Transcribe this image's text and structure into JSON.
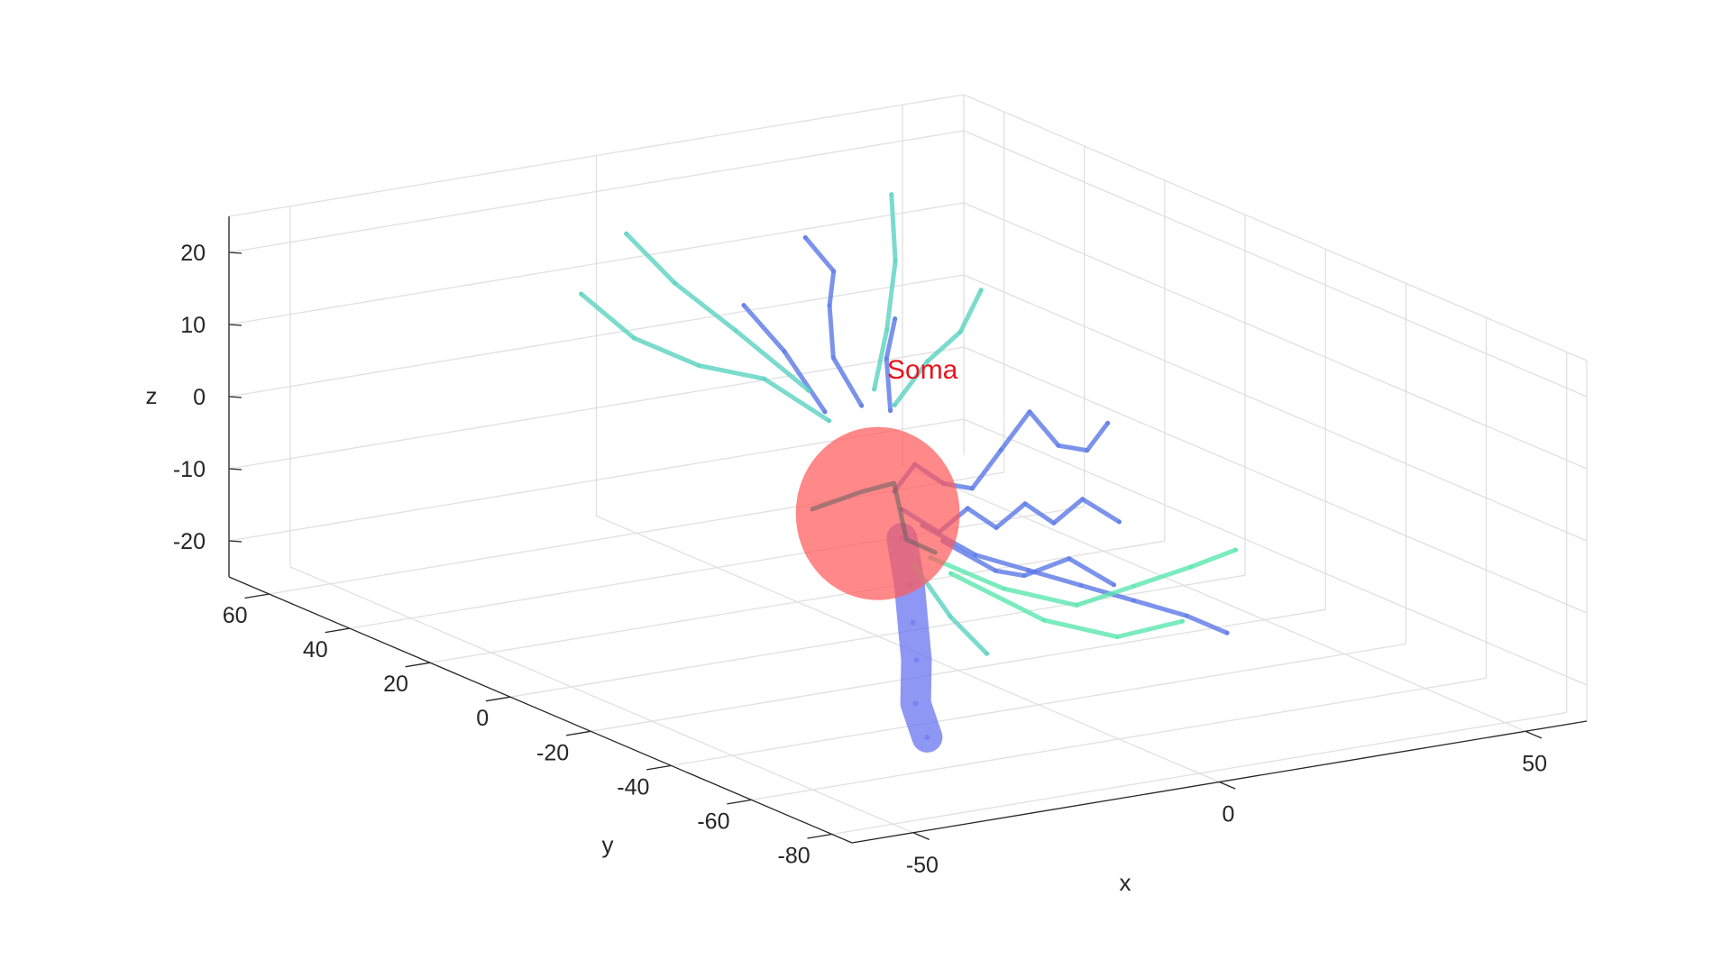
{
  "chart_data": {
    "type": "3d-line",
    "title": "",
    "xlabel": "x",
    "ylabel": "y",
    "zlabel": "z",
    "x_ticks": [
      -50,
      0,
      50
    ],
    "y_ticks": [
      60,
      40,
      20,
      0,
      -20,
      -40,
      -60,
      -80
    ],
    "z_ticks": [
      20,
      10,
      0,
      -10,
      -20
    ],
    "xlim": [
      -60,
      60
    ],
    "ylim": [
      -85,
      70
    ],
    "zlim": [
      -25,
      25
    ],
    "grid": true,
    "colors": {
      "soma": "#ff5a5a",
      "axon": "#6a74f0",
      "dendrite_blue": "#5a78e6",
      "dendrite_cyan": "#5ad2c0",
      "dendrite_green": "#5ae6b0",
      "annotation": "#e8141e"
    },
    "annotation": {
      "text": "Soma",
      "color": "#e8141e"
    },
    "soma": {
      "center": [
        0,
        0,
        -8
      ],
      "radius": 12
    },
    "series": [
      {
        "kind": "axon",
        "points": [
          [
            0,
            -6,
            -10
          ],
          [
            -4,
            -14,
            -14
          ],
          [
            -10,
            -24,
            -16
          ],
          [
            -16,
            -34,
            -18
          ],
          [
            -24,
            -46,
            -20
          ],
          [
            -30,
            -58,
            -21
          ]
        ]
      },
      {
        "kind": "dendrite_blue",
        "points": [
          [
            4,
            2,
            -6
          ],
          [
            10,
            6,
            -4
          ],
          [
            16,
            8,
            -8
          ],
          [
            22,
            10,
            -10
          ],
          [
            28,
            12,
            -6
          ],
          [
            34,
            14,
            -2
          ],
          [
            40,
            16,
            -8
          ],
          [
            46,
            18,
            -10
          ],
          [
            52,
            22,
            -8
          ]
        ]
      },
      {
        "kind": "dendrite_blue",
        "points": [
          [
            6,
            -2,
            -10
          ],
          [
            12,
            -6,
            -14
          ],
          [
            18,
            -10,
            -16
          ],
          [
            24,
            -14,
            -18
          ],
          [
            30,
            -18,
            -20
          ],
          [
            36,
            -22,
            -22
          ],
          [
            40,
            -26,
            -24
          ]
        ]
      },
      {
        "kind": "dendrite_blue",
        "points": [
          [
            4,
            0,
            -8
          ],
          [
            10,
            0,
            -12
          ],
          [
            16,
            2,
            -10
          ],
          [
            22,
            4,
            -14
          ],
          [
            28,
            6,
            -12
          ],
          [
            34,
            8,
            -16
          ],
          [
            40,
            10,
            -14
          ],
          [
            46,
            10,
            -18
          ]
        ]
      },
      {
        "kind": "dendrite_blue",
        "points": [
          [
            0,
            4,
            6
          ],
          [
            -2,
            8,
            12
          ],
          [
            0,
            12,
            18
          ],
          [
            2,
            14,
            22
          ],
          [
            0,
            18,
            26
          ]
        ]
      },
      {
        "kind": "dendrite_blue",
        "points": [
          [
            -6,
            4,
            6
          ],
          [
            -10,
            8,
            14
          ],
          [
            -14,
            12,
            20
          ]
        ]
      },
      {
        "kind": "dendrite_blue",
        "points": [
          [
            6,
            6,
            4
          ],
          [
            8,
            10,
            10
          ],
          [
            12,
            14,
            14
          ]
        ]
      },
      {
        "kind": "dendrite_blue",
        "points": [
          [
            8,
            -4,
            -12
          ],
          [
            14,
            -8,
            -16
          ],
          [
            20,
            -6,
            -18
          ],
          [
            26,
            -8,
            -16
          ],
          [
            32,
            -10,
            -20
          ]
        ]
      },
      {
        "kind": "dendrite_cyan",
        "points": [
          [
            -4,
            6,
            4
          ],
          [
            -12,
            10,
            10
          ],
          [
            -20,
            14,
            12
          ],
          [
            -28,
            18,
            16
          ],
          [
            -34,
            22,
            22
          ]
        ]
      },
      {
        "kind": "dendrite_cyan",
        "points": [
          [
            -6,
            8,
            8
          ],
          [
            -14,
            14,
            16
          ],
          [
            -20,
            20,
            22
          ],
          [
            -24,
            26,
            28
          ]
        ]
      },
      {
        "kind": "dendrite_cyan",
        "points": [
          [
            6,
            10,
            6
          ],
          [
            12,
            16,
            12
          ],
          [
            16,
            20,
            20
          ],
          [
            18,
            24,
            28
          ]
        ]
      },
      {
        "kind": "dendrite_cyan",
        "points": [
          [
            8,
            8,
            4
          ],
          [
            16,
            12,
            8
          ],
          [
            24,
            16,
            10
          ],
          [
            30,
            20,
            14
          ]
        ]
      },
      {
        "kind": "dendrite_cyan",
        "points": [
          [
            2,
            -6,
            -14
          ],
          [
            4,
            -12,
            -20
          ],
          [
            6,
            -18,
            -24
          ]
        ]
      },
      {
        "kind": "dendrite_green",
        "points": [
          [
            6,
            -4,
            -14
          ],
          [
            14,
            -10,
            -18
          ],
          [
            22,
            -16,
            -20
          ],
          [
            30,
            -18,
            -18
          ],
          [
            38,
            -20,
            -16
          ],
          [
            44,
            -22,
            -14
          ]
        ]
      },
      {
        "kind": "dendrite_green",
        "points": [
          [
            8,
            -6,
            -16
          ],
          [
            18,
            -14,
            -22
          ],
          [
            26,
            -20,
            -24
          ],
          [
            34,
            -24,
            -22
          ]
        ]
      }
    ]
  }
}
